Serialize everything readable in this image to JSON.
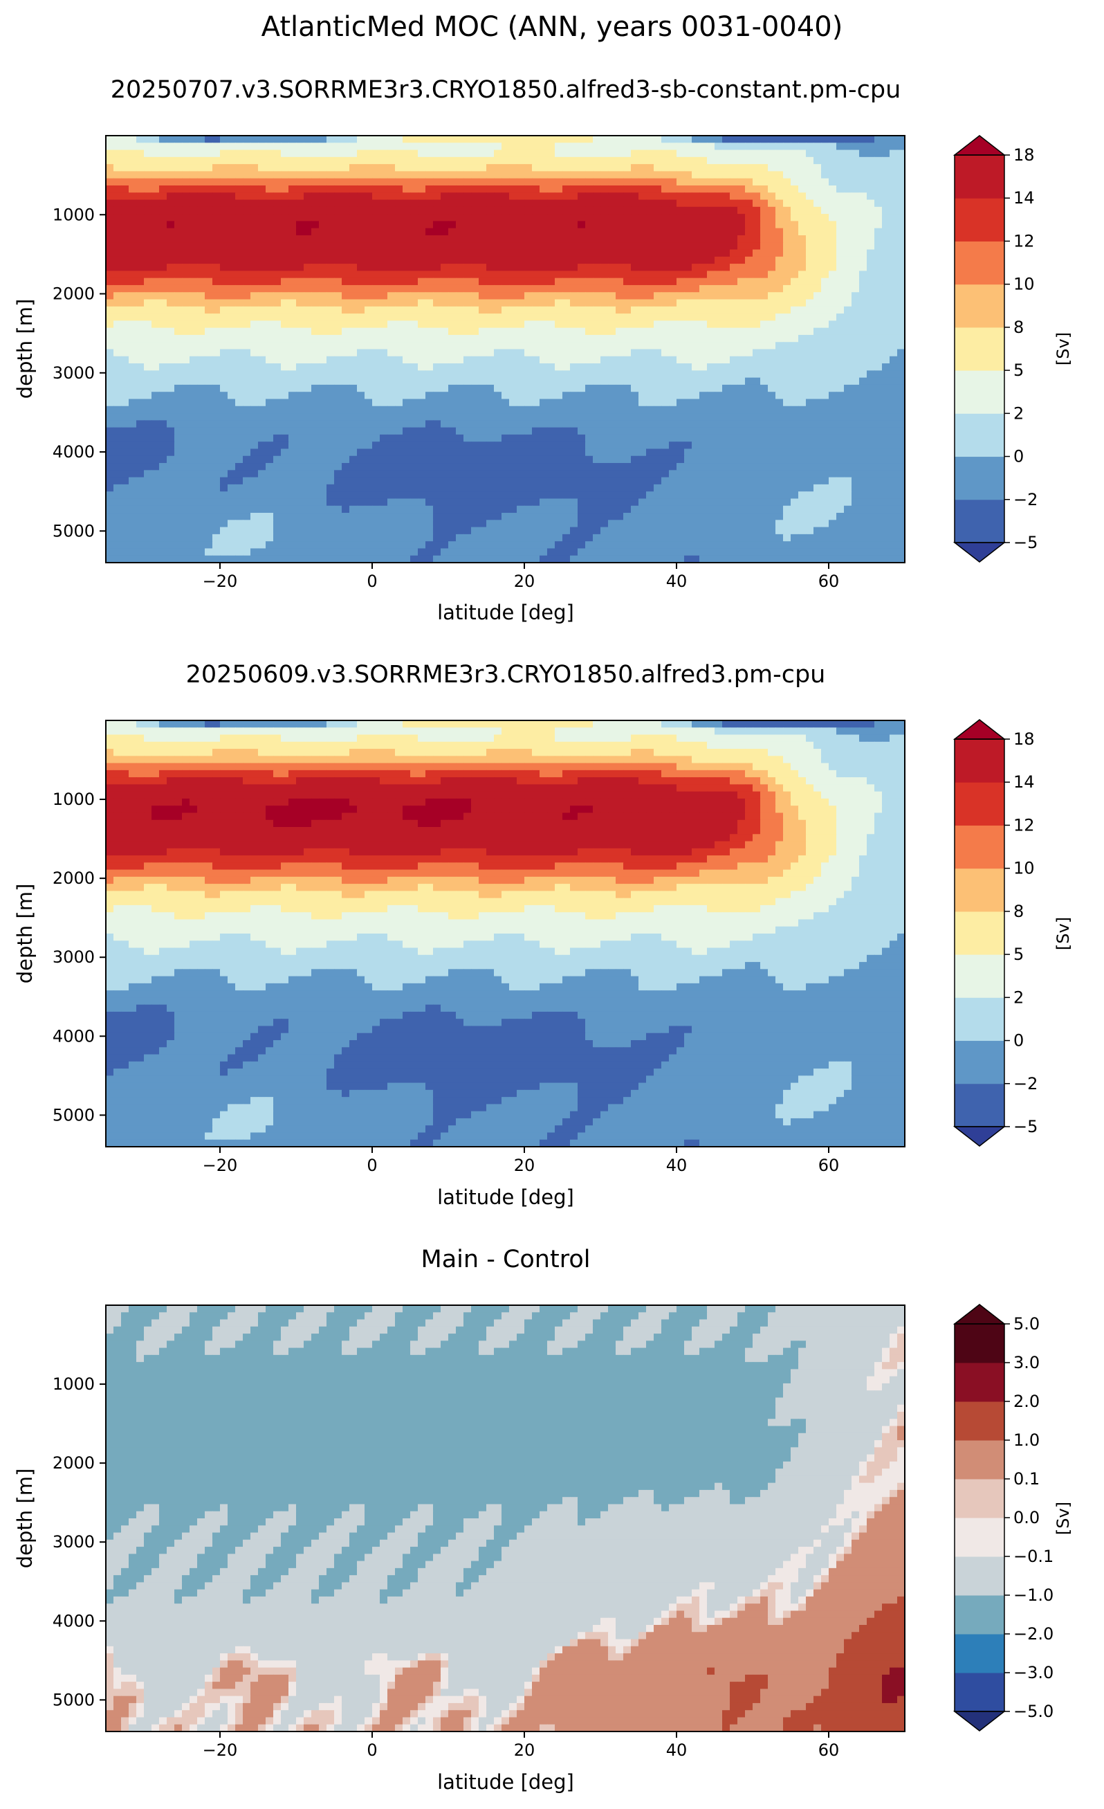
{
  "suptitle": "AtlanticMed MOC (ANN, years 0031-0040)",
  "colors": {
    "main": [
      "#2f3f97",
      "#3f63ae",
      "#5f97c7",
      "#b4dceb",
      "#e7f5e6",
      "#fdeda3",
      "#fcc075",
      "#f47b4a",
      "#d93327",
      "#be1a27",
      "#a60026"
    ],
    "diff": [
      "#23317a",
      "#2f4da0",
      "#2d7fb9",
      "#76aabd",
      "#c9d3d8",
      "#f0e8e6",
      "#e6c7bc",
      "#d18d76",
      "#b74a35",
      "#8a0f24",
      "#4e0515"
    ]
  },
  "chart_data": [
    {
      "type": "heatmap",
      "title": "20250707.v3.SORRME3r3.CRYO1850.alfred3-sb-constant.pm-cpu",
      "xlabel": "latitude [deg]",
      "ylabel": "depth [m]",
      "xlim": [
        -35,
        70
      ],
      "ylim": [
        5400,
        0
      ],
      "x_ticks": [
        "−20",
        "0",
        "20",
        "40",
        "60"
      ],
      "x_tick_values": [
        -20,
        0,
        20,
        40,
        60
      ],
      "y_ticks": [
        "1000",
        "2000",
        "3000",
        "4000",
        "5000"
      ],
      "y_tick_values": [
        1000,
        2000,
        3000,
        4000,
        5000
      ],
      "colorbar_label": "[Sv]",
      "colorbar_ticks": [
        "−5",
        "−2",
        "0",
        "2",
        "5",
        "8",
        "10",
        "12",
        "14",
        "18"
      ],
      "levels": [
        -5,
        -2,
        0,
        2,
        5,
        8,
        10,
        12,
        14,
        18
      ],
      "extend": "both",
      "contour_lines": true,
      "features": {
        "cell_max_sv": 18,
        "cell_core_depth_m": [
          800,
          1500
        ],
        "cell_north_edge_lat": 60,
        "deep_negative_cell_lat": [
          0,
          30
        ],
        "deep_negative_cell_depth_m": [
          3800,
          4600
        ]
      }
    },
    {
      "type": "heatmap",
      "title": "20250609.v3.SORRME3r3.CRYO1850.alfred3.pm-cpu",
      "xlabel": "latitude [deg]",
      "ylabel": "depth [m]",
      "xlim": [
        -35,
        70
      ],
      "ylim": [
        5400,
        0
      ],
      "x_ticks": [
        "−20",
        "0",
        "20",
        "40",
        "60"
      ],
      "x_tick_values": [
        -20,
        0,
        20,
        40,
        60
      ],
      "y_ticks": [
        "1000",
        "2000",
        "3000",
        "4000",
        "5000"
      ],
      "y_tick_values": [
        1000,
        2000,
        3000,
        4000,
        5000
      ],
      "colorbar_label": "[Sv]",
      "colorbar_ticks": [
        "−5",
        "−2",
        "0",
        "2",
        "5",
        "8",
        "10",
        "12",
        "14",
        "18"
      ],
      "levels": [
        -5,
        -2,
        0,
        2,
        5,
        8,
        10,
        12,
        14,
        18
      ],
      "extend": "both",
      "contour_lines": true,
      "features": {
        "cell_max_sv": 18,
        "cell_core_depth_m": [
          800,
          1500
        ],
        "cell_north_edge_lat": 60,
        "deep_negative_cell_lat": [
          0,
          30
        ],
        "deep_negative_cell_depth_m": [
          3800,
          4600
        ]
      }
    },
    {
      "type": "heatmap",
      "title": "Main - Control",
      "xlabel": "latitude [deg]",
      "ylabel": "depth [m]",
      "xlim": [
        -35,
        70
      ],
      "ylim": [
        5400,
        0
      ],
      "x_ticks": [
        "−20",
        "0",
        "20",
        "40",
        "60"
      ],
      "x_tick_values": [
        -20,
        0,
        20,
        40,
        60
      ],
      "y_ticks": [
        "1000",
        "2000",
        "3000",
        "4000",
        "5000"
      ],
      "y_tick_values": [
        1000,
        2000,
        3000,
        4000,
        5000
      ],
      "colorbar_label": "[Sv]",
      "colorbar_ticks": [
        "−5.0",
        "−3.0",
        "−2.0",
        "−1.0",
        "−0.1",
        "0.0",
        "0.1",
        "1.0",
        "2.0",
        "3.0",
        "5.0"
      ],
      "levels": [
        -5.0,
        -3.0,
        -2.0,
        -1.0,
        -0.1,
        0.0,
        0.1,
        1.0,
        2.0,
        3.0,
        5.0
      ],
      "extend": "both",
      "contour_lines": true,
      "features": {
        "negative_region_lat": [
          -35,
          53
        ],
        "negative_region_depth_m": [
          600,
          2600
        ],
        "negative_region_range_sv": [
          -2.0,
          -1.0
        ]
      }
    }
  ]
}
